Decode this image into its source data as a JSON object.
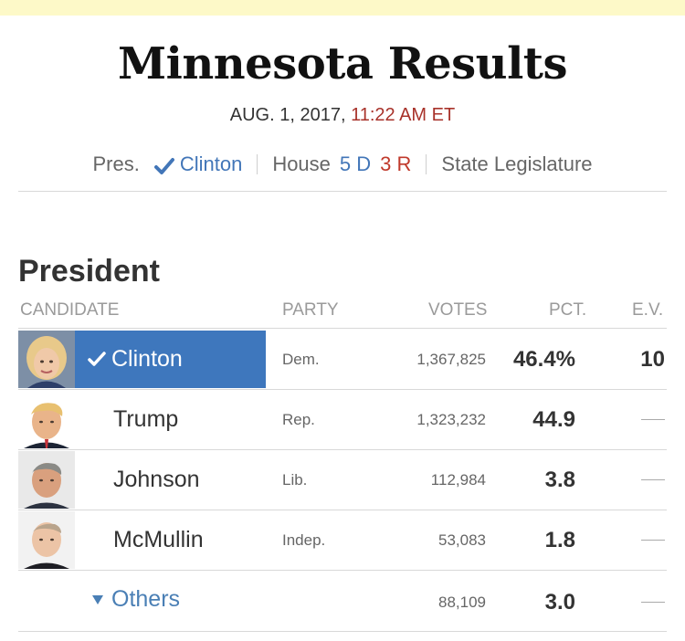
{
  "header": {
    "title": "Minnesota Results",
    "date": "AUG. 1, 2017,",
    "time": "11:22 AM ET"
  },
  "nav": {
    "pres_label": "Pres.",
    "pres_winner": "Clinton",
    "house_label": "House",
    "house_dem": "5 D",
    "house_rep": "3 R",
    "state_leg": "State Legislature"
  },
  "section": {
    "title": "President",
    "columns": {
      "candidate": "CANDIDATE",
      "party": "PARTY",
      "votes": "VOTES",
      "pct": "PCT.",
      "ev": "E.V."
    }
  },
  "candidates": [
    {
      "name": "Clinton",
      "party": "Dem.",
      "votes": "1,367,825",
      "pct": "46.4%",
      "ev": "10",
      "winner": true
    },
    {
      "name": "Trump",
      "party": "Rep.",
      "votes": "1,323,232",
      "pct": "44.9",
      "ev": "—"
    },
    {
      "name": "Johnson",
      "party": "Lib.",
      "votes": "112,984",
      "pct": "3.8",
      "ev": "—"
    },
    {
      "name": "McMullin",
      "party": "Indep.",
      "votes": "53,083",
      "pct": "1.8",
      "ev": "—"
    }
  ],
  "others": {
    "label": "Others",
    "votes": "88,109",
    "pct": "3.0",
    "ev": "—"
  },
  "colors": {
    "accent_blue": "#3e77bd",
    "link_blue": "#4276b8",
    "rep_red": "#c0392b",
    "time_red": "#a8322a",
    "top_bar": "#fdf9c8"
  },
  "icons": {
    "nav_check": "checkmark-icon",
    "winner_check": "checkmark-icon",
    "others_toggle": "triangle-down-icon"
  }
}
